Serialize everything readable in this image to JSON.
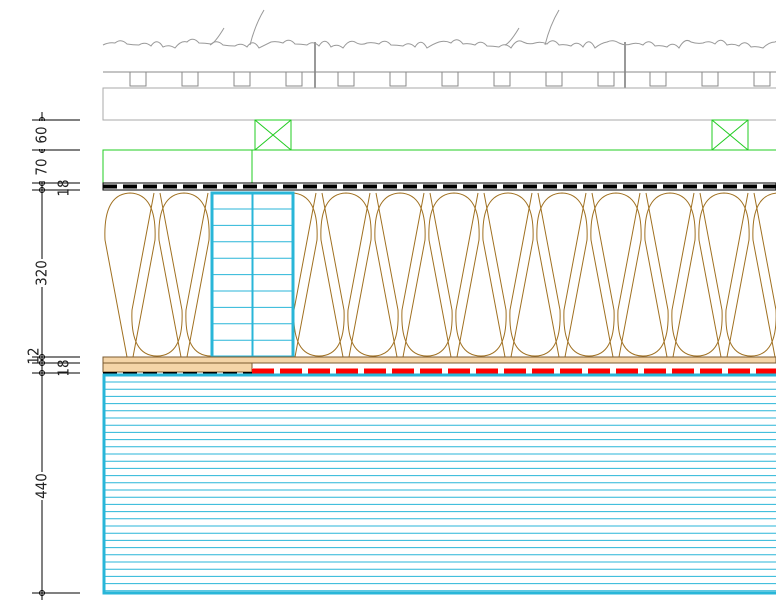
{
  "dimensions": [
    {
      "label": "60"
    },
    {
      "label": "70"
    },
    {
      "label": "18"
    },
    {
      "label": "320"
    },
    {
      "label": "12"
    },
    {
      "label": "18"
    },
    {
      "label": "440"
    }
  ]
}
